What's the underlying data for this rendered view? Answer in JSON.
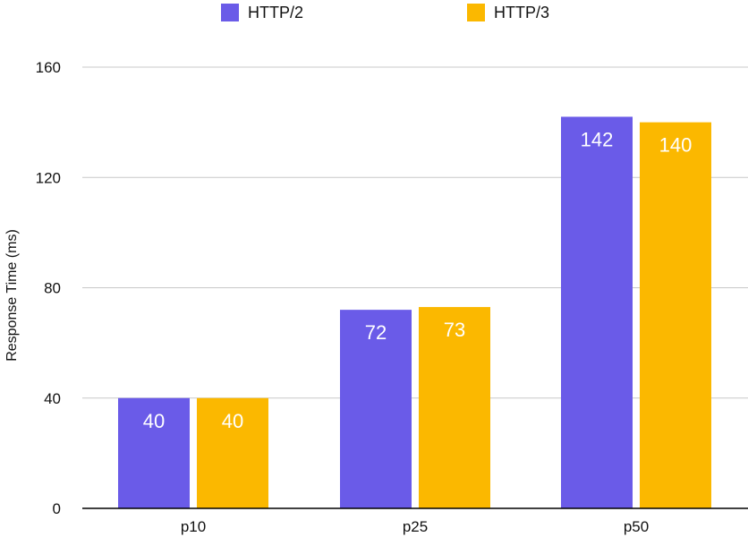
{
  "chart_data": {
    "type": "bar",
    "title": "",
    "xlabel": "",
    "ylabel": "Response Time (ms)",
    "categories": [
      "p10",
      "p25",
      "p50"
    ],
    "series": [
      {
        "name": "HTTP/2",
        "color": "#6A5BE8",
        "values": [
          40,
          72,
          142
        ]
      },
      {
        "name": "HTTP/3",
        "color": "#FBB800",
        "values": [
          40,
          73,
          140
        ]
      }
    ],
    "ylim": [
      0,
      160
    ],
    "yticks": [
      0,
      40,
      80,
      120,
      160
    ],
    "grid": true,
    "legend_position": "top",
    "data_labels": true
  }
}
